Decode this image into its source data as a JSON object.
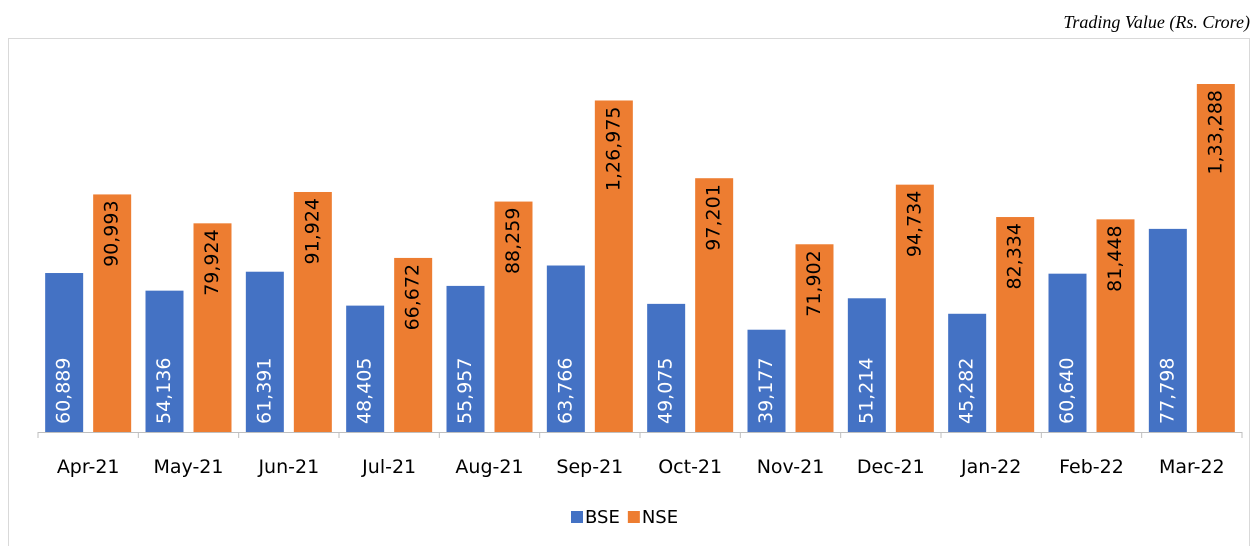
{
  "chart_data": {
    "type": "bar",
    "title": "Trading Value (Rs. Crore)",
    "categories": [
      "Apr-21",
      "May-21",
      "Jun-21",
      "Jul-21",
      "Aug-21",
      "Sep-21",
      "Oct-21",
      "Nov-21",
      "Dec-21",
      "Jan-22",
      "Feb-22",
      "Mar-22"
    ],
    "series": [
      {
        "name": "BSE",
        "color": "#4472c4",
        "values": [
          60889,
          54136,
          61391,
          48405,
          55957,
          63766,
          49075,
          39177,
          51214,
          45282,
          60640,
          77798
        ],
        "value_labels": [
          "60,889",
          "54,136",
          "61,391",
          "48,405",
          "55,957",
          "63,766",
          "49,075",
          "39,177",
          "51,214",
          "45,282",
          "60,640",
          "77,798"
        ]
      },
      {
        "name": "NSE",
        "color": "#ed7d31",
        "values": [
          90993,
          79924,
          91924,
          66672,
          88259,
          126975,
          97201,
          71902,
          94734,
          82334,
          81448,
          133288
        ],
        "value_labels": [
          "90,993",
          "79,924",
          "91,924",
          "66,672",
          "88,259",
          "1,26,975",
          "97,201",
          "71,902",
          "94,734",
          "82,334",
          "81,448",
          "1,33,288"
        ]
      }
    ],
    "legend": "bottom"
  }
}
